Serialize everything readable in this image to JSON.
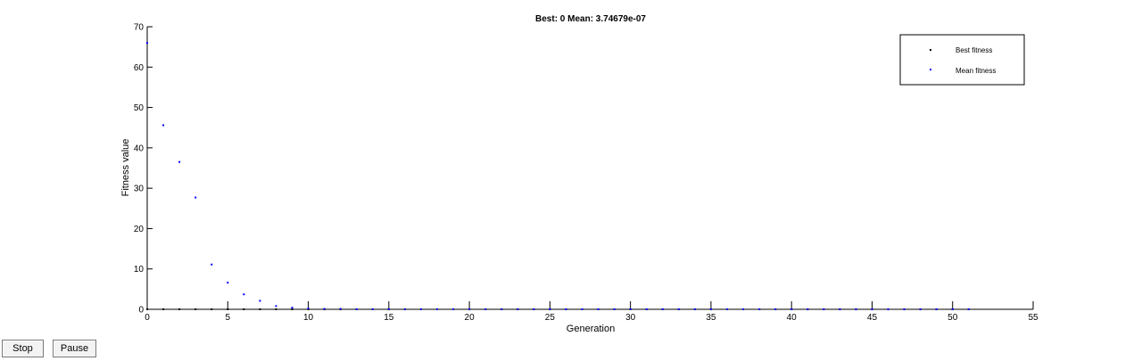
{
  "controls": {
    "stop_label": "Stop",
    "pause_label": "Pause"
  },
  "chart_data": {
    "type": "scatter",
    "title": "Best: 0 Mean: 3.74679e-07",
    "xlabel": "Generation",
    "ylabel": "Fitness value",
    "xlim": [
      0,
      55
    ],
    "ylim": [
      0,
      70
    ],
    "xticks": [
      0,
      5,
      10,
      15,
      20,
      25,
      30,
      35,
      40,
      45,
      50,
      55
    ],
    "yticks": [
      0,
      10,
      20,
      30,
      40,
      50,
      60,
      70
    ],
    "grid": false,
    "legend_position": "top-right",
    "series": [
      {
        "name": "Best fitness",
        "color": "#000000",
        "x": [
          0,
          1,
          2,
          3,
          4,
          5,
          6,
          7,
          8,
          9,
          10,
          11,
          12,
          13,
          14,
          15,
          16,
          17,
          18,
          19,
          20,
          21,
          22,
          23,
          24,
          25,
          26,
          27,
          28,
          29,
          30,
          31,
          32,
          33,
          34,
          35,
          36,
          37,
          38,
          39,
          40,
          41,
          42,
          43,
          44,
          45,
          46,
          47,
          48,
          49,
          50,
          51
        ],
        "values": [
          0,
          0,
          0,
          0,
          0,
          0,
          0,
          0,
          0,
          0,
          0,
          0,
          0,
          0,
          0,
          0,
          0,
          0,
          0,
          0,
          0,
          0,
          0,
          0,
          0,
          0,
          0,
          0,
          0,
          0,
          0,
          0,
          0,
          0,
          0,
          0,
          0,
          0,
          0,
          0,
          0,
          0,
          0,
          0,
          0,
          0,
          0,
          0,
          0,
          0,
          0,
          0
        ]
      },
      {
        "name": "Mean fitness",
        "color": "#0000ff",
        "x": [
          0,
          1,
          2,
          3,
          4,
          5,
          6,
          7,
          8,
          9,
          10,
          11,
          12,
          13,
          14,
          15,
          16,
          17,
          18,
          19,
          20,
          21,
          22,
          23,
          24,
          25,
          26,
          27,
          28,
          29,
          30,
          31,
          32,
          33,
          34,
          35,
          36,
          37,
          38,
          39,
          40,
          41,
          42,
          43,
          44,
          45,
          46,
          47,
          48,
          49,
          50,
          51
        ],
        "values": [
          66.0,
          45.6,
          36.5,
          27.7,
          11.1,
          6.6,
          3.7,
          2.1,
          0.8,
          0.4,
          0.2,
          0.1,
          0.1,
          0,
          0,
          0,
          0,
          0,
          0,
          0,
          0,
          0,
          0,
          0,
          0,
          0,
          0,
          0,
          0,
          0,
          0,
          0,
          0,
          0,
          0,
          0,
          0,
          0,
          0,
          0,
          0,
          0,
          0,
          0,
          0,
          0,
          0,
          0,
          0,
          0,
          0,
          0
        ]
      }
    ]
  }
}
